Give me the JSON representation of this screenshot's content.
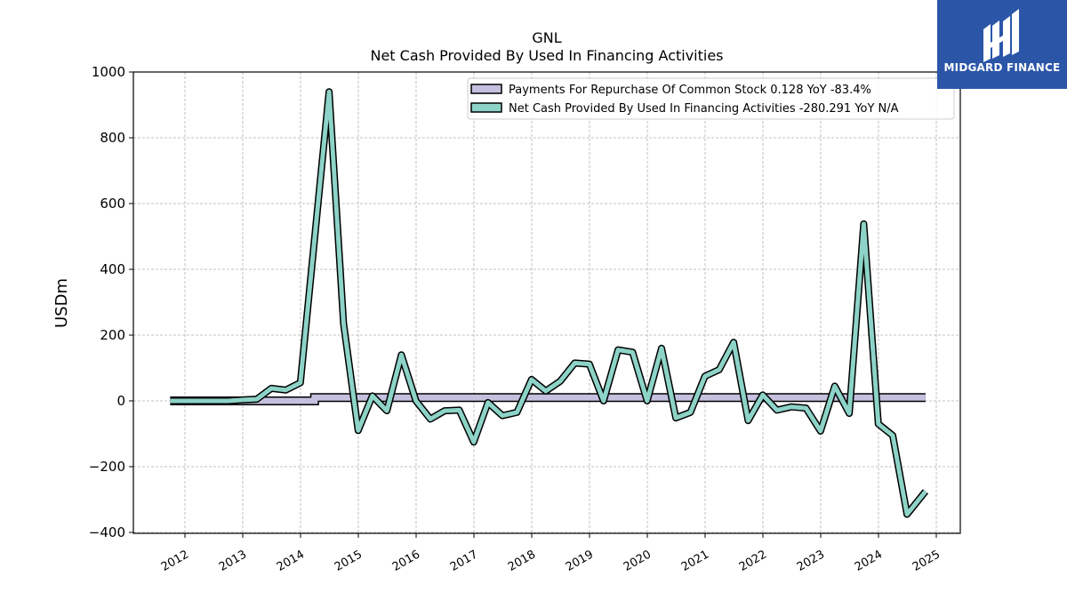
{
  "logo": {
    "text": "MIDGARD FINANCE",
    "background": "#2b56a8"
  },
  "chart_data": {
    "type": "line",
    "title": "GNL",
    "subtitle": "Net Cash Provided By Used In Financing Activities",
    "ylabel": "USDm",
    "xlabel": "",
    "ylim": [
      -400,
      1000
    ],
    "yticks": [
      -400,
      -200,
      0,
      200,
      400,
      600,
      800,
      1000
    ],
    "xticks": [
      "2012",
      "2013",
      "2014",
      "2015",
      "2016",
      "2017",
      "2018",
      "2019",
      "2020",
      "2021",
      "2022",
      "2023",
      "2024",
      "2025"
    ],
    "grid": true,
    "legend_position": "top-right",
    "series": [
      {
        "name": "Payments For Repurchase Of Common Stock",
        "legend_label": "Payments For Repurchase Of Common Stock  0.128 YoY -83.4%",
        "style": "band",
        "color": "#c4c0de",
        "points": [
          [
            "2011-09-30",
            0
          ],
          [
            "2014-03-31",
            0
          ],
          [
            "2014-03-31",
            10
          ],
          [
            "2024-10-25",
            10
          ]
        ]
      },
      {
        "name": "Net Cash Provided By Used In Financing Activities",
        "legend_label": "Net Cash Provided By Used In Financing Activities  -280.291 YoY N/A",
        "style": "line",
        "color": "#8dd3c7",
        "points": [
          [
            "2011-09-30",
            0
          ],
          [
            "2011-12-31",
            0
          ],
          [
            "2012-03-31",
            0
          ],
          [
            "2012-06-30",
            0
          ],
          [
            "2012-09-30",
            0
          ],
          [
            "2012-12-31",
            3
          ],
          [
            "2013-03-31",
            5
          ],
          [
            "2013-06-30",
            38
          ],
          [
            "2013-09-30",
            33
          ],
          [
            "2013-12-31",
            55
          ],
          [
            "2014-06-30",
            940
          ],
          [
            "2014-09-30",
            235
          ],
          [
            "2014-12-31",
            -90
          ],
          [
            "2015-03-31",
            15
          ],
          [
            "2015-06-30",
            -30
          ],
          [
            "2015-09-30",
            140
          ],
          [
            "2015-12-31",
            0
          ],
          [
            "2016-03-31",
            -55
          ],
          [
            "2016-06-30",
            -30
          ],
          [
            "2016-09-30",
            -28
          ],
          [
            "2016-12-31",
            -125
          ],
          [
            "2017-03-31",
            -5
          ],
          [
            "2017-06-30",
            -45
          ],
          [
            "2017-09-30",
            -35
          ],
          [
            "2017-12-31",
            65
          ],
          [
            "2018-03-31",
            30
          ],
          [
            "2018-06-30",
            60
          ],
          [
            "2018-09-30",
            115
          ],
          [
            "2018-12-31",
            112
          ],
          [
            "2019-03-31",
            0
          ],
          [
            "2019-06-30",
            155
          ],
          [
            "2019-09-30",
            148
          ],
          [
            "2019-12-31",
            0
          ],
          [
            "2020-03-31",
            160
          ],
          [
            "2020-06-30",
            -52
          ],
          [
            "2020-09-30",
            -35
          ],
          [
            "2020-12-31",
            75
          ],
          [
            "2021-03-31",
            95
          ],
          [
            "2021-06-30",
            178
          ],
          [
            "2021-09-30",
            -60
          ],
          [
            "2021-12-31",
            18
          ],
          [
            "2022-03-31",
            -28
          ],
          [
            "2022-06-30",
            -18
          ],
          [
            "2022-09-30",
            -22
          ],
          [
            "2022-12-31",
            -92
          ],
          [
            "2023-03-31",
            45
          ],
          [
            "2023-06-30",
            -38
          ],
          [
            "2023-09-30",
            538
          ],
          [
            "2023-12-31",
            -70
          ],
          [
            "2024-03-31",
            -105
          ],
          [
            "2024-06-30",
            -345
          ],
          [
            "2024-10-25",
            -275
          ]
        ]
      }
    ]
  }
}
